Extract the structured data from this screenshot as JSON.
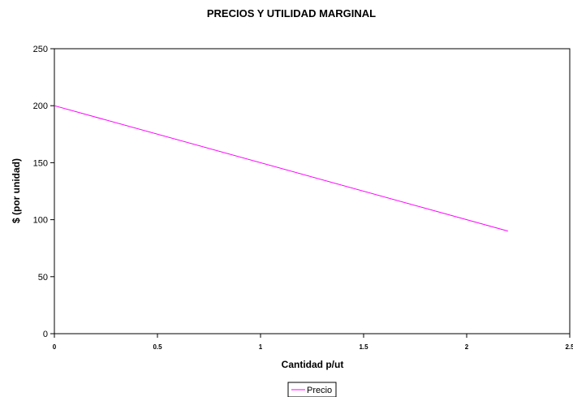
{
  "chart_data": {
    "type": "line",
    "title": "PRECIOS Y UTILIDAD MARGINAL",
    "xlabel": "Cantidad p/ut",
    "ylabel": "$ (por unidad)",
    "xlim": [
      0,
      2.5
    ],
    "ylim": [
      0,
      250
    ],
    "x_ticks": [
      "0",
      "0.5",
      "1",
      "1.5",
      "2",
      "2.5"
    ],
    "y_ticks": [
      "0",
      "50",
      "100",
      "150",
      "200",
      "250"
    ],
    "grid": false,
    "legend_position": "bottom",
    "series": [
      {
        "name": "Precio",
        "color": "#ff00ff",
        "x": [
          0,
          2.2
        ],
        "y": [
          200,
          90
        ]
      }
    ]
  }
}
